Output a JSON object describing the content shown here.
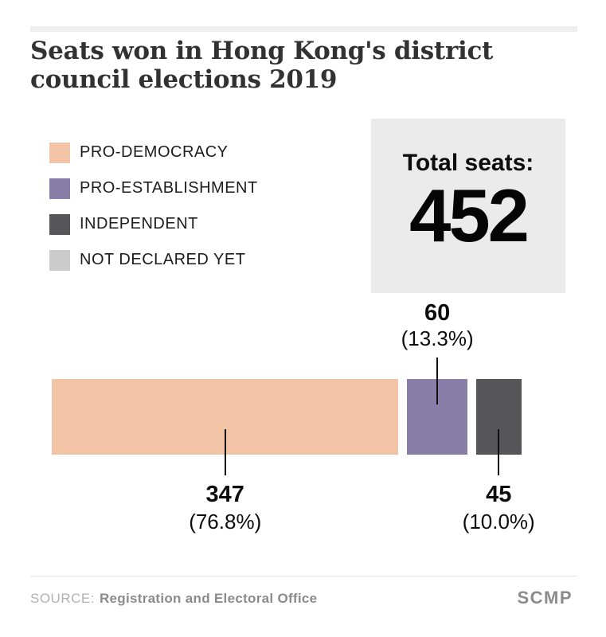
{
  "header": {
    "title_lines": [
      "Seats won in Hong Kong's district",
      "council elections 2019"
    ]
  },
  "legend": {
    "items": [
      {
        "label": "PRO-DEMOCRACY",
        "color": "#f2c3a5"
      },
      {
        "label": "PRO-ESTABLISHMENT",
        "color": "#897ea8"
      },
      {
        "label": "INDEPENDENT",
        "color": "#565658"
      },
      {
        "label": "NOT DECLARED YET",
        "color": "#cbcbcb"
      }
    ]
  },
  "total_box": {
    "label": "Total seats:",
    "value": "452",
    "background": "#ebebeb"
  },
  "chart_data": {
    "type": "bar",
    "orientation": "horizontal",
    "stacked": true,
    "grid": false,
    "legend_position": "top-left",
    "title": "Seats won in Hong Kong's district council elections 2019",
    "total_seats": 452,
    "categories": [
      "PRO-DEMOCRACY",
      "PRO-ESTABLISHMENT",
      "INDEPENDENT",
      "NOT DECLARED YET"
    ],
    "values": [
      347,
      60,
      45,
      0
    ],
    "segments": [
      {
        "name": "PRO-DEMOCRACY",
        "seats": 347,
        "percent": 76.8,
        "value_label": "347",
        "percent_label": "(76.8%)",
        "color": "#f2c3a5",
        "callout": "below"
      },
      {
        "name": "PRO-ESTABLISHMENT",
        "seats": 60,
        "percent": 13.3,
        "value_label": "60",
        "percent_label": "(13.3%)",
        "color": "#897ea8",
        "callout": "above"
      },
      {
        "name": "INDEPENDENT",
        "seats": 45,
        "percent": 10.0,
        "value_label": "45",
        "percent_label": "(10.0%)",
        "color": "#565658",
        "callout": "below"
      }
    ]
  },
  "footer": {
    "source_prefix": "SOURCE:",
    "source_name": "Registration and Electoral Office",
    "brand": "SCMP"
  }
}
